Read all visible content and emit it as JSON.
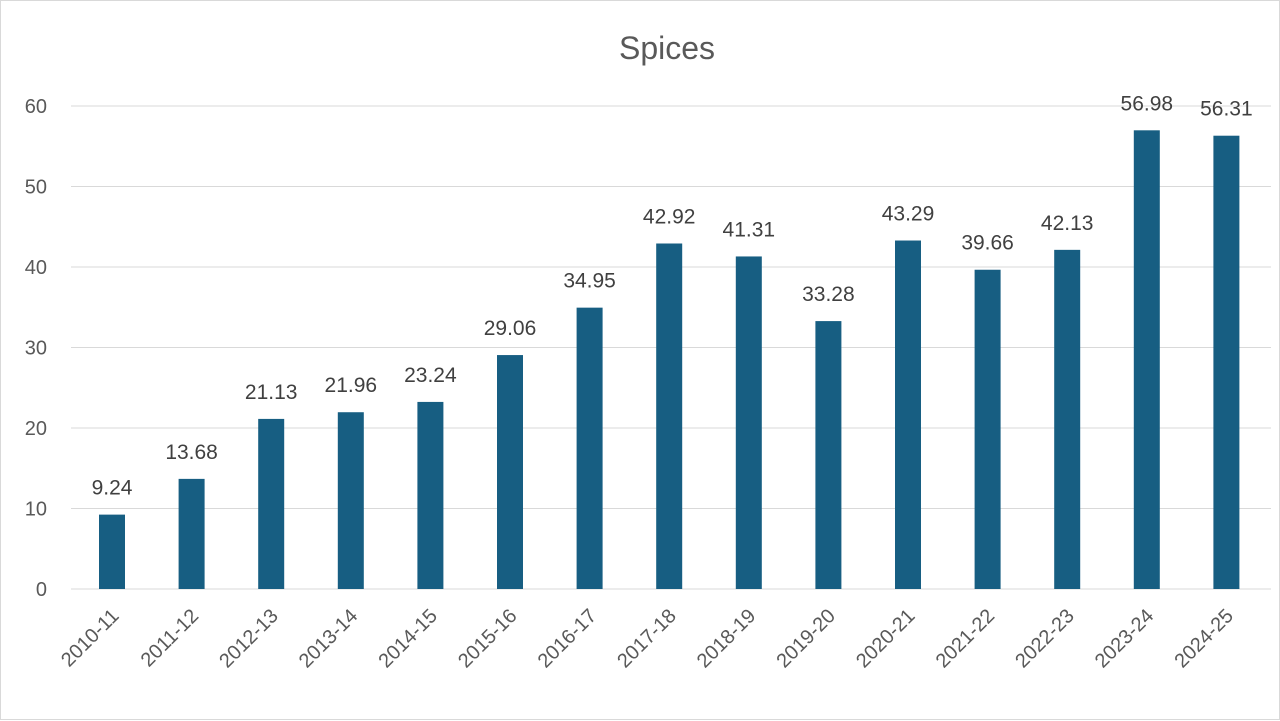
{
  "chart_data": {
    "type": "bar",
    "title": "Spices",
    "xlabel": "",
    "ylabel": "",
    "categories": [
      "2010-11",
      "2011-12",
      "2012-13",
      "2013-14",
      "2014-15",
      "2015-16",
      "2016-17",
      "2017-18",
      "2018-19",
      "2019-20",
      "2020-21",
      "2021-22",
      "2022-23",
      "2023-24",
      "2024-25"
    ],
    "values": [
      9.24,
      13.68,
      21.13,
      21.96,
      23.24,
      29.06,
      34.95,
      42.92,
      41.31,
      33.28,
      43.29,
      39.66,
      42.13,
      56.98,
      56.31
    ],
    "data_labels": [
      "9.24",
      "13.68",
      "21.13",
      "21.96",
      "23.24",
      "29.06",
      "34.95",
      "42.92",
      "41.31",
      "33.28",
      "43.29",
      "39.66",
      "42.13",
      "56.98",
      "56.31"
    ],
    "ylim": [
      0,
      60
    ],
    "yticks": [
      "0",
      "10",
      "20",
      "30",
      "40",
      "50",
      "60"
    ],
    "grid": true,
    "legend": "none",
    "bar_color": "#175e82"
  }
}
